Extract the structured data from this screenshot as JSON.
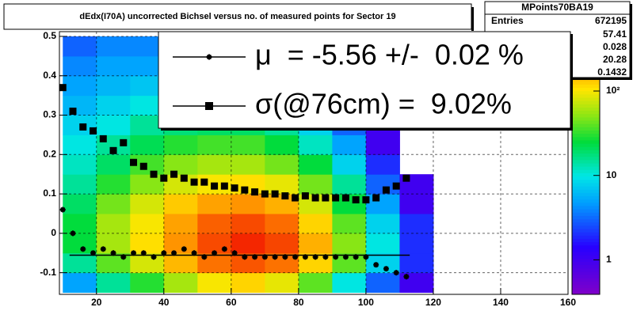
{
  "chart_data": {
    "type": "heatmap",
    "title": "dEdx(I70A) uncorrected Bichsel versus no. of measured points for Sector 19",
    "xlim": [
      9,
      160
    ],
    "ylim": [
      -0.155,
      0.512
    ],
    "xticks": [
      20,
      40,
      60,
      80,
      100,
      120,
      140,
      160
    ],
    "yticks": [
      -0.1,
      0,
      0.1,
      0.2,
      0.3,
      0.4,
      0.5
    ],
    "grid": true,
    "x_bins": [
      10,
      20,
      30,
      40,
      50,
      60,
      70,
      80,
      90,
      100,
      110,
      120,
      130
    ],
    "y_bins": [
      -0.15,
      -0.1,
      -0.05,
      0,
      0.05,
      0.1,
      0.15,
      0.2,
      0.25,
      0.3,
      0.35,
      0.4,
      0.45,
      0.5
    ],
    "z": [
      [
        5,
        15,
        30,
        60,
        100,
        120,
        90,
        40,
        10,
        3,
        1,
        0
      ],
      [
        15,
        40,
        80,
        150,
        250,
        300,
        250,
        120,
        40,
        8,
        2,
        0
      ],
      [
        25,
        60,
        110,
        200,
        320,
        400,
        330,
        160,
        50,
        10,
        2,
        0
      ],
      [
        25,
        60,
        100,
        180,
        280,
        320,
        260,
        120,
        40,
        8,
        2,
        0
      ],
      [
        20,
        45,
        80,
        130,
        180,
        200,
        160,
        80,
        25,
        5,
        1,
        0
      ],
      [
        15,
        30,
        50,
        80,
        100,
        110,
        90,
        45,
        15,
        3,
        1,
        0
      ],
      [
        12,
        20,
        35,
        50,
        60,
        60,
        45,
        25,
        8,
        2,
        0,
        0
      ],
      [
        10,
        15,
        22,
        30,
        35,
        35,
        25,
        12,
        5,
        1,
        0,
        0
      ],
      [
        8,
        10,
        15,
        18,
        20,
        20,
        15,
        8,
        3,
        1,
        0,
        0
      ],
      [
        6,
        8,
        10,
        12,
        12,
        12,
        9,
        5,
        2,
        0,
        0,
        0
      ],
      [
        5,
        6,
        7,
        8,
        8,
        8,
        6,
        3,
        1,
        0,
        0,
        0
      ],
      [
        4,
        5,
        5,
        6,
        6,
        5,
        4,
        2,
        1,
        0,
        0,
        0
      ],
      [
        3,
        4,
        4,
        4,
        4,
        4,
        3,
        2,
        1,
        0,
        0,
        0
      ]
    ],
    "zlog": true,
    "zlim": [
      0.39,
      505
    ],
    "zticks": [
      1,
      10,
      {
        "value": 100,
        "label": "10²"
      }
    ],
    "series": [
      {
        "name": "μ  = -5.56 +/-  0.02 %",
        "marker": "star",
        "color": "#000000",
        "x": [
          10,
          13,
          16,
          19,
          22,
          25,
          28,
          31,
          34,
          37,
          40,
          43,
          46,
          49,
          52,
          55,
          58,
          61,
          64,
          67,
          70,
          73,
          76,
          79,
          82,
          85,
          88,
          91,
          94,
          97,
          100,
          103,
          106,
          109,
          112
        ],
        "values": [
          0.06,
          0.0,
          -0.04,
          -0.05,
          -0.04,
          -0.05,
          -0.06,
          -0.05,
          -0.05,
          -0.06,
          -0.05,
          -0.05,
          -0.04,
          -0.05,
          -0.06,
          -0.05,
          -0.04,
          -0.05,
          -0.06,
          -0.06,
          -0.06,
          -0.06,
          -0.06,
          -0.06,
          -0.06,
          -0.06,
          -0.06,
          -0.06,
          -0.06,
          -0.06,
          -0.06,
          -0.08,
          -0.09,
          -0.1,
          -0.11
        ]
      },
      {
        "name": "σ(@76cm) =  9.02%",
        "marker": "square",
        "color": "#000000",
        "x": [
          10,
          13,
          16,
          19,
          22,
          25,
          28,
          31,
          34,
          37,
          40,
          43,
          46,
          49,
          52,
          55,
          58,
          61,
          64,
          67,
          70,
          73,
          76,
          79,
          82,
          85,
          88,
          91,
          94,
          97,
          100,
          103,
          106,
          109,
          112
        ],
        "values": [
          0.37,
          0.31,
          0.27,
          0.26,
          0.24,
          0.21,
          0.23,
          0.18,
          0.17,
          0.15,
          0.14,
          0.15,
          0.14,
          0.13,
          0.13,
          0.12,
          0.12,
          0.115,
          0.11,
          0.105,
          0.1,
          0.1,
          0.095,
          0.09,
          0.095,
          0.09,
          0.09,
          0.09,
          0.09,
          0.085,
          0.085,
          0.09,
          0.11,
          0.12,
          0.14
        ]
      }
    ],
    "fit_line": {
      "x": [
        12,
        113
      ],
      "y": [
        -0.0556,
        -0.0556
      ]
    },
    "stats": {
      "title": "MPoints70BA19",
      "entries_label": "Entries",
      "entries": 672195,
      "values": [
        57.41,
        0.028,
        20.28,
        0.1432
      ]
    }
  }
}
